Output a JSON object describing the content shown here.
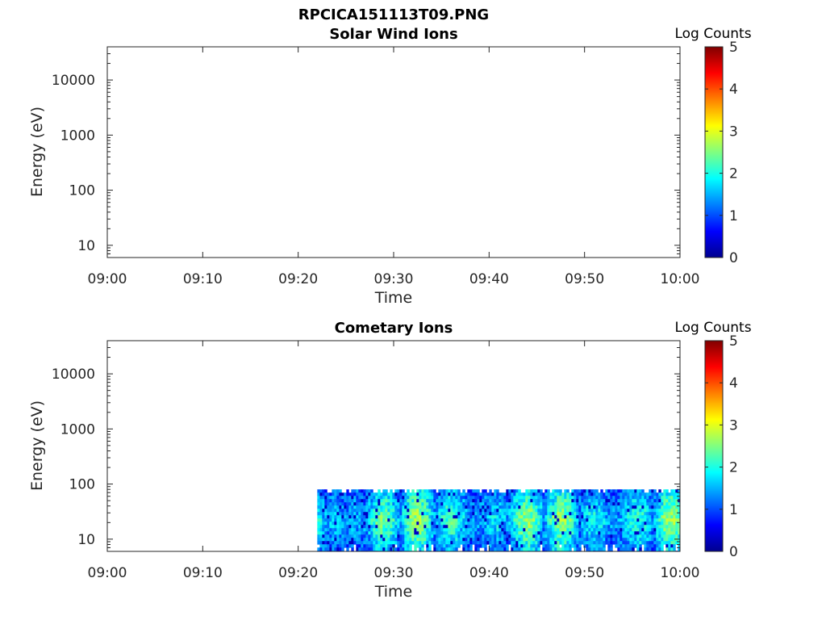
{
  "figure": {
    "title": "RPCICA151113T09.PNG"
  },
  "colors": {
    "colormap": [
      "#00008f",
      "#0000ff",
      "#0080ff",
      "#00ffff",
      "#80ff80",
      "#ffff00",
      "#ff8000",
      "#ff0000",
      "#800000"
    ]
  },
  "chart_data": [
    {
      "type": "heatmap",
      "title": "Solar Wind Ions",
      "xlabel": "Time",
      "ylabel": "Energy (eV)",
      "xticks": [
        "09:00",
        "09:10",
        "09:20",
        "09:30",
        "09:40",
        "09:50",
        "10:00"
      ],
      "xlim_minutes": [
        0,
        60
      ],
      "yscale": "log",
      "ylim": [
        6,
        40000
      ],
      "yticks": [
        "10",
        "100",
        "1000",
        "10000"
      ],
      "colorbar": {
        "title": "Log Counts",
        "range": [
          0,
          5
        ],
        "ticks": [
          "0",
          "1",
          "2",
          "3",
          "4",
          "5"
        ]
      },
      "data_extent": null
    },
    {
      "type": "heatmap",
      "title": "Cometary Ions",
      "xlabel": "Time",
      "ylabel": "Energy (eV)",
      "xticks": [
        "09:00",
        "09:10",
        "09:20",
        "09:30",
        "09:40",
        "09:50",
        "10:00"
      ],
      "xlim_minutes": [
        0,
        60
      ],
      "yscale": "log",
      "ylim": [
        6,
        40000
      ],
      "yticks": [
        "10",
        "100",
        "1000",
        "10000"
      ],
      "colorbar": {
        "title": "Log Counts",
        "range": [
          0,
          5
        ],
        "ticks": [
          "0",
          "1",
          "2",
          "3",
          "4",
          "5"
        ]
      },
      "data_extent": {
        "t_start": "09:22",
        "t_end": "10:00",
        "energy_min_eV": 6,
        "energy_max_eV": 80,
        "typical_log_counts": [
          0.5,
          2.5
        ]
      }
    }
  ]
}
